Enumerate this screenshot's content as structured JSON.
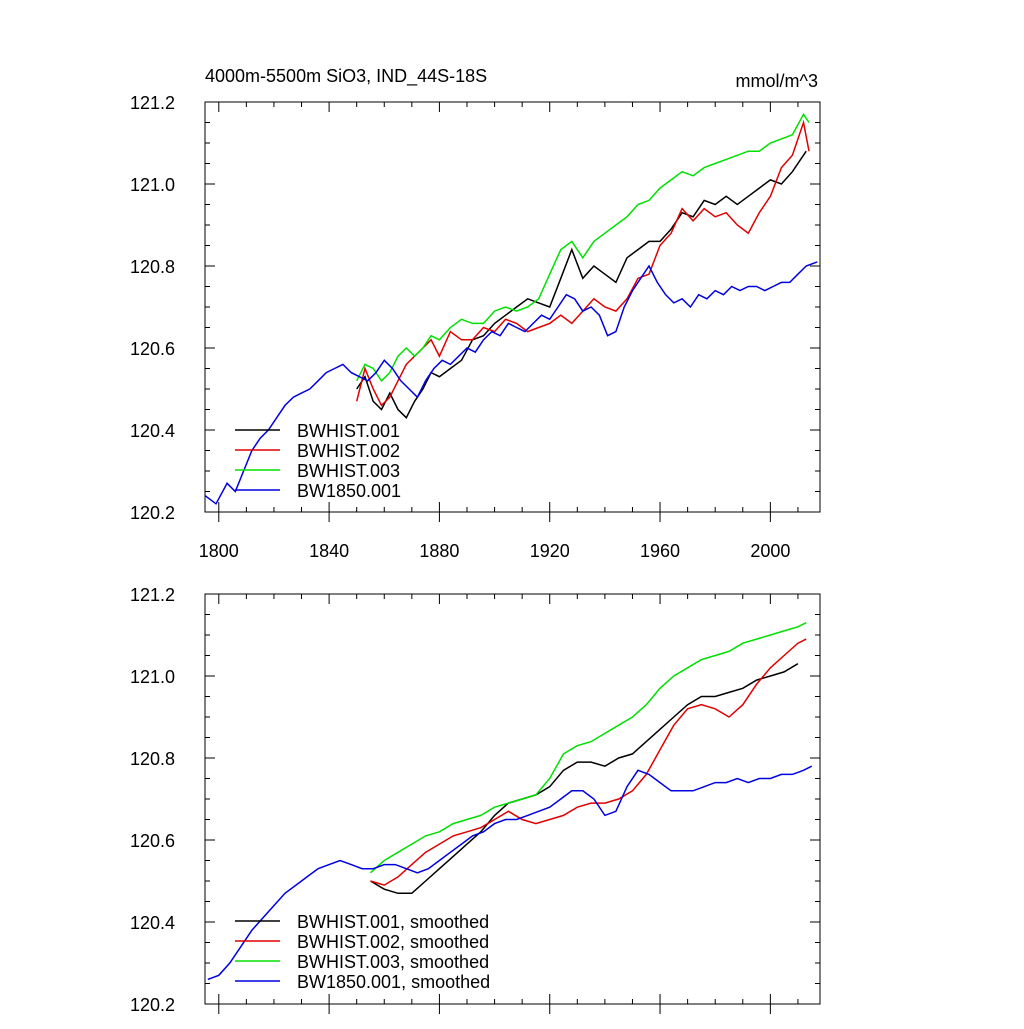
{
  "title_left": "4000m-5500m SiO3, IND_44S-18S",
  "title_right": "mmol/m^3",
  "chart_data": [
    {
      "type": "line",
      "title": "4000m-5500m SiO3, IND_44S-18S",
      "units": "mmol/m^3",
      "xlim": [
        1795,
        2018
      ],
      "ylim": [
        120.2,
        121.2
      ],
      "x_ticks": [
        1800,
        1840,
        1880,
        1920,
        1960,
        2000
      ],
      "x_tick_labels": [
        "1800",
        "1840",
        "1880",
        "1920",
        "1960",
        "2000"
      ],
      "y_ticks": [
        120.2,
        120.4,
        120.6,
        120.8,
        121.0,
        121.2
      ],
      "y_tick_labels": [
        "120.2",
        "120.4",
        "120.6",
        "120.8",
        "121.0",
        "121.2"
      ],
      "legend_position": "lower-left",
      "series": [
        {
          "name": "BWHIST.001",
          "color": "#000000",
          "x": [
            1850,
            1853,
            1856,
            1859,
            1862,
            1865,
            1868,
            1871,
            1874,
            1877,
            1880,
            1884,
            1888,
            1892,
            1896,
            1900,
            1904,
            1908,
            1912,
            1916,
            1920,
            1924,
            1928,
            1932,
            1936,
            1940,
            1944,
            1948,
            1952,
            1956,
            1960,
            1964,
            1968,
            1972,
            1976,
            1980,
            1984,
            1988,
            1992,
            1996,
            2000,
            2004,
            2008,
            2013
          ],
          "y": [
            120.5,
            120.53,
            120.47,
            120.45,
            120.49,
            120.45,
            120.43,
            120.47,
            120.5,
            120.54,
            120.53,
            120.55,
            120.57,
            120.62,
            120.63,
            120.66,
            120.68,
            120.7,
            120.72,
            120.71,
            120.7,
            120.77,
            120.84,
            120.77,
            120.8,
            120.78,
            120.76,
            120.82,
            120.84,
            120.86,
            120.86,
            120.89,
            120.93,
            120.92,
            120.96,
            120.95,
            120.97,
            120.95,
            120.97,
            120.99,
            121.01,
            121.0,
            121.03,
            121.08
          ]
        },
        {
          "name": "BWHIST.002",
          "color": "#e00000",
          "x": [
            1850,
            1853,
            1856,
            1859,
            1862,
            1865,
            1868,
            1871,
            1874,
            1877,
            1880,
            1884,
            1888,
            1892,
            1896,
            1900,
            1904,
            1908,
            1912,
            1916,
            1920,
            1924,
            1928,
            1932,
            1936,
            1940,
            1944,
            1948,
            1952,
            1956,
            1960,
            1964,
            1968,
            1972,
            1976,
            1980,
            1984,
            1988,
            1992,
            1996,
            2000,
            2004,
            2008,
            2012,
            2014
          ],
          "y": [
            120.47,
            120.55,
            120.5,
            120.46,
            120.48,
            120.52,
            120.56,
            120.58,
            120.6,
            120.62,
            120.58,
            120.64,
            120.62,
            120.62,
            120.65,
            120.64,
            120.67,
            120.66,
            120.64,
            120.65,
            120.66,
            120.68,
            120.66,
            120.69,
            120.72,
            120.7,
            120.69,
            120.72,
            120.77,
            120.78,
            120.85,
            120.88,
            120.94,
            120.91,
            120.94,
            120.92,
            120.93,
            120.9,
            120.88,
            120.93,
            120.97,
            121.04,
            121.07,
            121.15,
            121.08
          ]
        },
        {
          "name": "BWHIST.003",
          "color": "#00e000",
          "x": [
            1850,
            1853,
            1856,
            1859,
            1862,
            1865,
            1868,
            1871,
            1874,
            1877,
            1880,
            1884,
            1888,
            1892,
            1896,
            1900,
            1904,
            1908,
            1912,
            1916,
            1920,
            1924,
            1928,
            1932,
            1936,
            1940,
            1944,
            1948,
            1952,
            1956,
            1960,
            1964,
            1968,
            1972,
            1976,
            1980,
            1984,
            1988,
            1992,
            1996,
            2000,
            2004,
            2008,
            2012,
            2014
          ],
          "y": [
            120.52,
            120.56,
            120.55,
            120.52,
            120.54,
            120.58,
            120.6,
            120.58,
            120.6,
            120.63,
            120.62,
            120.65,
            120.67,
            120.66,
            120.66,
            120.69,
            120.7,
            120.69,
            120.7,
            120.72,
            120.78,
            120.84,
            120.86,
            120.82,
            120.86,
            120.88,
            120.9,
            120.92,
            120.95,
            120.96,
            120.99,
            121.01,
            121.03,
            121.02,
            121.04,
            121.05,
            121.06,
            121.07,
            121.08,
            121.08,
            121.1,
            121.11,
            121.12,
            121.17,
            121.15
          ]
        },
        {
          "name": "BW1850.001",
          "color": "#0000e0",
          "x": [
            1795,
            1799,
            1803,
            1806,
            1809,
            1812,
            1815,
            1818,
            1821,
            1824,
            1827,
            1830,
            1833,
            1836,
            1839,
            1842,
            1845,
            1848,
            1851,
            1854,
            1857,
            1860,
            1863,
            1866,
            1869,
            1872,
            1875,
            1878,
            1881,
            1884,
            1887,
            1890,
            1893,
            1896,
            1899,
            1902,
            1905,
            1908,
            1911,
            1914,
            1917,
            1920,
            1923,
            1926,
            1929,
            1932,
            1935,
            1938,
            1941,
            1944,
            1947,
            1950,
            1953,
            1956,
            1959,
            1962,
            1965,
            1968,
            1971,
            1974,
            1977,
            1980,
            1983,
            1986,
            1989,
            1992,
            1995,
            1998,
            2001,
            2004,
            2007,
            2010,
            2013,
            2017
          ],
          "y": [
            120.24,
            120.22,
            120.27,
            120.25,
            120.3,
            120.35,
            120.38,
            120.4,
            120.43,
            120.46,
            120.48,
            120.49,
            120.5,
            120.52,
            120.54,
            120.55,
            120.56,
            120.54,
            120.53,
            120.52,
            120.54,
            120.57,
            120.55,
            120.52,
            120.5,
            120.48,
            120.52,
            120.55,
            120.57,
            120.56,
            120.58,
            120.6,
            120.59,
            120.62,
            120.64,
            120.63,
            120.66,
            120.65,
            120.64,
            120.66,
            120.68,
            120.67,
            120.7,
            120.73,
            120.72,
            120.69,
            120.7,
            120.68,
            120.63,
            120.64,
            120.7,
            120.74,
            120.77,
            120.8,
            120.76,
            120.73,
            120.71,
            120.72,
            120.7,
            120.73,
            120.72,
            120.74,
            120.73,
            120.75,
            120.74,
            120.75,
            120.75,
            120.74,
            120.75,
            120.76,
            120.76,
            120.78,
            120.8,
            120.81
          ]
        }
      ]
    },
    {
      "type": "line",
      "xlim": [
        1795,
        2018
      ],
      "ylim": [
        120.2,
        121.2
      ],
      "y_ticks": [
        120.2,
        120.4,
        120.6,
        120.8,
        121.0,
        121.2
      ],
      "y_tick_labels": [
        "120.2",
        "120.4",
        "120.6",
        "120.8",
        "121.0",
        "121.2"
      ],
      "legend_position": "lower-left",
      "series": [
        {
          "name": "BWHIST.001, smoothed",
          "color": "#000000",
          "x": [
            1855,
            1860,
            1865,
            1870,
            1875,
            1880,
            1885,
            1890,
            1895,
            1900,
            1905,
            1910,
            1915,
            1920,
            1925,
            1930,
            1935,
            1940,
            1945,
            1950,
            1955,
            1960,
            1965,
            1970,
            1975,
            1980,
            1985,
            1990,
            1995,
            2000,
            2005,
            2010
          ],
          "y": [
            120.5,
            120.48,
            120.47,
            120.47,
            120.5,
            120.53,
            120.56,
            120.59,
            120.62,
            120.66,
            120.69,
            120.7,
            120.71,
            120.73,
            120.77,
            120.79,
            120.79,
            120.78,
            120.8,
            120.81,
            120.84,
            120.87,
            120.9,
            120.93,
            120.95,
            120.95,
            120.96,
            120.97,
            120.99,
            121.0,
            121.01,
            121.03
          ]
        },
        {
          "name": "BWHIST.002, smoothed",
          "color": "#e00000",
          "x": [
            1855,
            1860,
            1865,
            1870,
            1875,
            1880,
            1885,
            1890,
            1895,
            1900,
            1905,
            1910,
            1915,
            1920,
            1925,
            1930,
            1935,
            1940,
            1945,
            1950,
            1955,
            1960,
            1965,
            1970,
            1975,
            1980,
            1985,
            1990,
            1995,
            2000,
            2005,
            2010,
            2013
          ],
          "y": [
            120.5,
            120.49,
            120.51,
            120.54,
            120.57,
            120.59,
            120.61,
            120.62,
            120.63,
            120.65,
            120.67,
            120.65,
            120.64,
            120.65,
            120.66,
            120.68,
            120.69,
            120.69,
            120.7,
            120.72,
            120.76,
            120.82,
            120.88,
            120.92,
            120.93,
            120.92,
            120.9,
            120.93,
            120.98,
            121.02,
            121.05,
            121.08,
            121.09
          ]
        },
        {
          "name": "BWHIST.003, smoothed",
          "color": "#00e000",
          "x": [
            1855,
            1860,
            1865,
            1870,
            1875,
            1880,
            1885,
            1890,
            1895,
            1900,
            1905,
            1910,
            1915,
            1920,
            1925,
            1930,
            1935,
            1940,
            1945,
            1950,
            1955,
            1960,
            1965,
            1970,
            1975,
            1980,
            1985,
            1990,
            1995,
            2000,
            2005,
            2010,
            2013
          ],
          "y": [
            120.52,
            120.55,
            120.57,
            120.59,
            120.61,
            120.62,
            120.64,
            120.65,
            120.66,
            120.68,
            120.69,
            120.7,
            120.71,
            120.75,
            120.81,
            120.83,
            120.84,
            120.86,
            120.88,
            120.9,
            120.93,
            120.97,
            121.0,
            121.02,
            121.04,
            121.05,
            121.06,
            121.08,
            121.09,
            121.1,
            121.11,
            121.12,
            121.13
          ]
        },
        {
          "name": "BW1850.001, smoothed",
          "color": "#0000e0",
          "x": [
            1796,
            1800,
            1804,
            1808,
            1812,
            1816,
            1820,
            1824,
            1828,
            1832,
            1836,
            1840,
            1844,
            1848,
            1852,
            1856,
            1860,
            1864,
            1868,
            1872,
            1876,
            1880,
            1884,
            1888,
            1892,
            1896,
            1900,
            1904,
            1908,
            1912,
            1916,
            1920,
            1924,
            1928,
            1932,
            1936,
            1940,
            1944,
            1948,
            1952,
            1956,
            1960,
            1964,
            1968,
            1972,
            1976,
            1980,
            1984,
            1988,
            1992,
            1996,
            2000,
            2004,
            2008,
            2012,
            2015
          ],
          "y": [
            120.26,
            120.27,
            120.3,
            120.34,
            120.38,
            120.41,
            120.44,
            120.47,
            120.49,
            120.51,
            120.53,
            120.54,
            120.55,
            120.54,
            120.53,
            120.53,
            120.54,
            120.54,
            120.53,
            120.52,
            120.53,
            120.55,
            120.57,
            120.59,
            120.61,
            120.62,
            120.64,
            120.65,
            120.65,
            120.66,
            120.67,
            120.68,
            120.7,
            120.72,
            120.72,
            120.7,
            120.66,
            120.67,
            120.73,
            120.77,
            120.76,
            120.74,
            120.72,
            120.72,
            120.72,
            120.73,
            120.74,
            120.74,
            120.75,
            120.74,
            120.75,
            120.75,
            120.76,
            120.76,
            120.77,
            120.78
          ]
        }
      ]
    }
  ]
}
